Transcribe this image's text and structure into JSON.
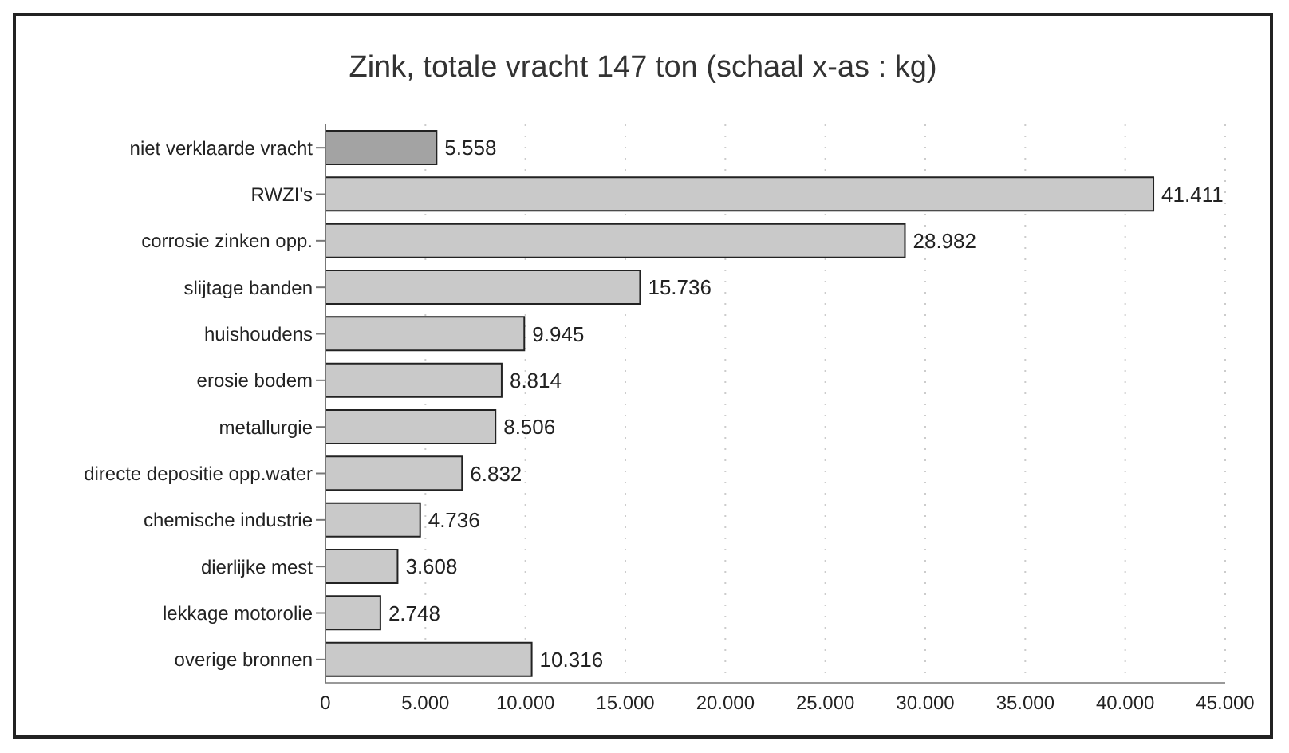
{
  "chart_data": {
    "type": "bar",
    "orientation": "horizontal",
    "title": "Zink, totale vracht 147 ton (schaal x-as : kg)",
    "categories": [
      "niet verklaarde vracht",
      "RWZI's",
      "corrosie zinken opp.",
      "slijtage banden",
      "huishoudens",
      "erosie bodem",
      "metallurgie",
      "directe depositie opp.water",
      "chemische industrie",
      "dierlijke mest",
      "lekkage motorolie",
      "overige bronnen"
    ],
    "values": [
      5558,
      41411,
      28982,
      15736,
      9945,
      8814,
      8506,
      6832,
      4736,
      3608,
      2748,
      10316
    ],
    "value_labels": [
      "5.558",
      "41.411",
      "28.982",
      "15.736",
      "9.945",
      "8.814",
      "8.506",
      "6.832",
      "4.736",
      "3.608",
      "2.748",
      "10.316"
    ],
    "colors": [
      "#a3a3a3",
      "#c9c9c9",
      "#c9c9c9",
      "#c9c9c9",
      "#c9c9c9",
      "#c9c9c9",
      "#c9c9c9",
      "#c9c9c9",
      "#c9c9c9",
      "#c9c9c9",
      "#c9c9c9",
      "#c9c9c9"
    ],
    "xlim": [
      0,
      45000
    ],
    "xticks": [
      0,
      {
        "value": 5000,
        "label": "5.000"
      },
      {
        "value": 10000,
        "label": "10.000"
      },
      {
        "value": 15000,
        "label": "15.000"
      },
      {
        "value": 20000,
        "label": "20.000"
      },
      {
        "value": 25000,
        "label": "25.000"
      },
      {
        "value": 30000,
        "label": "30.000"
      },
      {
        "value": 35000,
        "label": "35.000"
      },
      {
        "value": 40000,
        "label": "40.000"
      },
      {
        "value": 45000,
        "label": "45.000"
      }
    ],
    "grid": "x"
  }
}
